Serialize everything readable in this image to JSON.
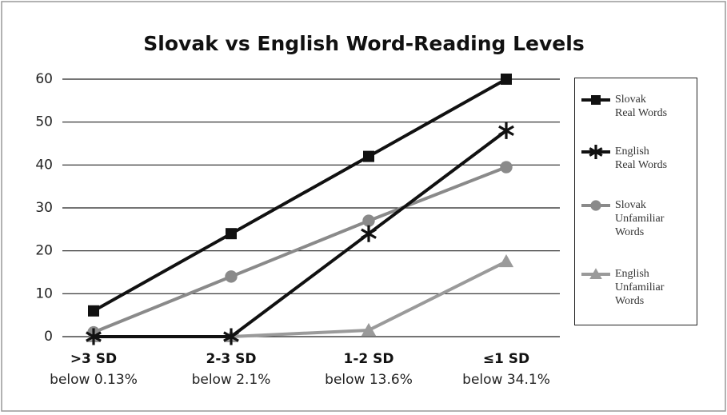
{
  "chart_data": {
    "type": "line",
    "title": "Slovak vs English Word-Reading Levels",
    "categories": [
      ">3 SD",
      "2-3 SD",
      "1-2 SD",
      "≤1 SD"
    ],
    "category_notes": [
      "below 0.13%",
      "below 2.1%",
      "below 13.6%",
      "below 34.1%"
    ],
    "series": [
      {
        "name": "Slovak Real Words",
        "color": "#111111",
        "marker": "square",
        "values": [
          6,
          24,
          42,
          60
        ]
      },
      {
        "name": "English Real Words",
        "color": "#111111",
        "marker": "asterisk",
        "values": [
          0,
          0,
          24,
          48
        ]
      },
      {
        "name": "Slovak Unfamiliar Words",
        "color": "#8a8a8a",
        "marker": "circle",
        "values": [
          1,
          14,
          27,
          39.5
        ]
      },
      {
        "name": "English Unfamiliar Words",
        "color": "#9a9a9a",
        "marker": "triangle",
        "values": [
          0,
          0,
          1.5,
          17.5
        ]
      }
    ],
    "ylim": [
      0,
      60
    ],
    "yticks": [
      0,
      10,
      20,
      30,
      40,
      50,
      60
    ],
    "grid": true,
    "legend": "right"
  }
}
